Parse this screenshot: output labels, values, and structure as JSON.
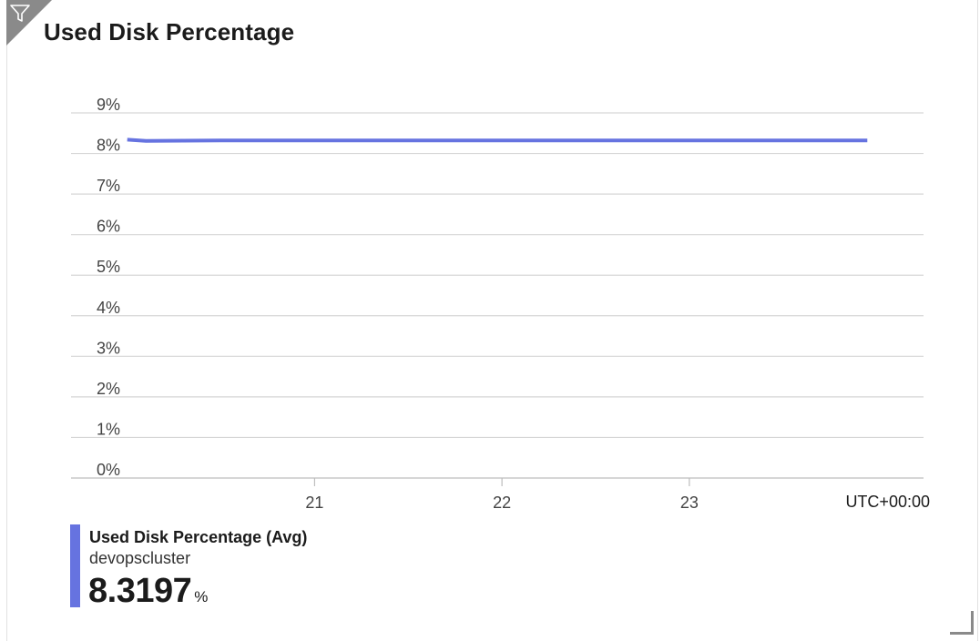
{
  "title": "Used Disk Percentage",
  "legend": {
    "series_label": "Used Disk Percentage (Avg)",
    "resource": "devopscluster",
    "value": "8.3197",
    "unit": "%",
    "color": "#6673e0"
  },
  "chart_data": {
    "type": "line",
    "title": "Used Disk Percentage",
    "xlabel": "",
    "ylabel": "",
    "timezone_label": "UTC+00:00",
    "y_ticks": [
      "0%",
      "1%",
      "2%",
      "3%",
      "4%",
      "5%",
      "6%",
      "7%",
      "8%",
      "9%"
    ],
    "ylim": [
      0,
      9
    ],
    "x_ticks": [
      {
        "label": "21",
        "value": 21
      },
      {
        "label": "22",
        "value": 22
      },
      {
        "label": "23",
        "value": 23
      }
    ],
    "xlim": [
      19.7,
      24.25
    ],
    "grid": true,
    "series": [
      {
        "name": "Used Disk Percentage (Avg)",
        "color": "#6673e0",
        "x": [
          20.0,
          20.1,
          20.5,
          21.0,
          21.5,
          22.0,
          22.5,
          23.0,
          23.5,
          23.95
        ],
        "y": [
          8.34,
          8.31,
          8.32,
          8.32,
          8.32,
          8.32,
          8.32,
          8.32,
          8.32,
          8.32
        ]
      }
    ]
  }
}
